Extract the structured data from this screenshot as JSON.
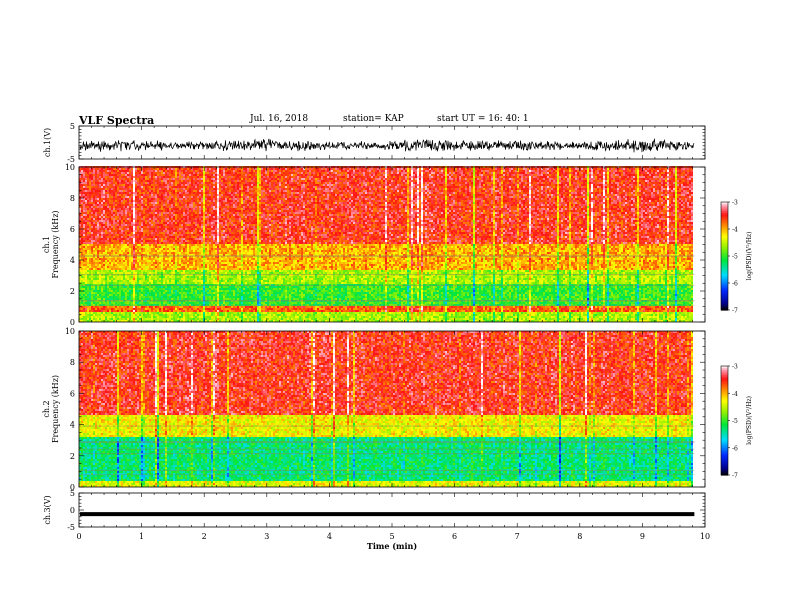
{
  "header": {
    "title": "VLF Spectra",
    "date": "Jul. 16, 2018",
    "station": "station= KAP",
    "start": "start UT = 16: 40: 1"
  },
  "chart_data": {
    "type": "heatmap",
    "title": "VLF Spectra",
    "time_axis": {
      "label": "Time (min)",
      "range": [
        0,
        10
      ],
      "ticks": [
        "0",
        "1",
        "2",
        "3",
        "4",
        "5",
        "6",
        "7",
        "8",
        "9",
        "10"
      ],
      "data_end_min": 9.83
    },
    "panels": [
      {
        "kind": "waveform",
        "ylabel": "ch.1(V)",
        "ylim": [
          -5,
          5
        ],
        "yticks": [
          "5",
          "-5"
        ],
        "color": "#000000",
        "description_values": {
          "baseline": -1.0,
          "amplitude": 3.5
        }
      },
      {
        "kind": "spectrogram",
        "ylabel_top": "ch.1",
        "ylabel": "Frequency (kHz)",
        "ylim": [
          0,
          10
        ],
        "yticks": [
          "0",
          "2",
          "4",
          "6",
          "8",
          "10"
        ],
        "colorbar": {
          "label": "log(PSD)(V²/Hz)",
          "range": [
            -7,
            -3
          ],
          "ticks": [
            "-3",
            "-4",
            "-5",
            "-6",
            "-7"
          ]
        },
        "band_profile_kHz": [
          {
            "f_min": 0.0,
            "f_max": 0.6,
            "log_psd": -4.6
          },
          {
            "f_min": 0.6,
            "f_max": 1.0,
            "log_psd": -3.7
          },
          {
            "f_min": 1.0,
            "f_max": 2.4,
            "log_psd": -5.0
          },
          {
            "f_min": 2.4,
            "f_max": 3.4,
            "log_psd": -4.6
          },
          {
            "f_min": 3.4,
            "f_max": 5.0,
            "log_psd": -4.0
          },
          {
            "f_min": 5.0,
            "f_max": 10.0,
            "log_psd": -3.5
          }
        ]
      },
      {
        "kind": "spectrogram",
        "ylabel_top": "ch.2",
        "ylabel": "Frequency (kHz)",
        "ylim": [
          0,
          10
        ],
        "yticks": [
          "0",
          "2",
          "4",
          "6",
          "8",
          "10"
        ],
        "colorbar": {
          "label": "log(PSD)(V²/Hz)",
          "range": [
            -7,
            -3
          ],
          "ticks": [
            "-3",
            "-4",
            "-5",
            "-6",
            "-7"
          ]
        },
        "band_profile_kHz": [
          {
            "f_min": 0.0,
            "f_max": 0.4,
            "log_psd": -4.4
          },
          {
            "f_min": 0.4,
            "f_max": 3.2,
            "log_psd": -5.3
          },
          {
            "f_min": 3.2,
            "f_max": 4.6,
            "log_psd": -4.3
          },
          {
            "f_min": 4.6,
            "f_max": 10.0,
            "log_psd": -3.5
          }
        ]
      },
      {
        "kind": "waveform",
        "ylabel": "ch.3(V)",
        "ylim": [
          -5,
          5
        ],
        "yticks": [
          "5",
          "0",
          "-5"
        ],
        "color": "#000000",
        "description_values": {
          "constant_value": -1.2
        }
      }
    ]
  }
}
